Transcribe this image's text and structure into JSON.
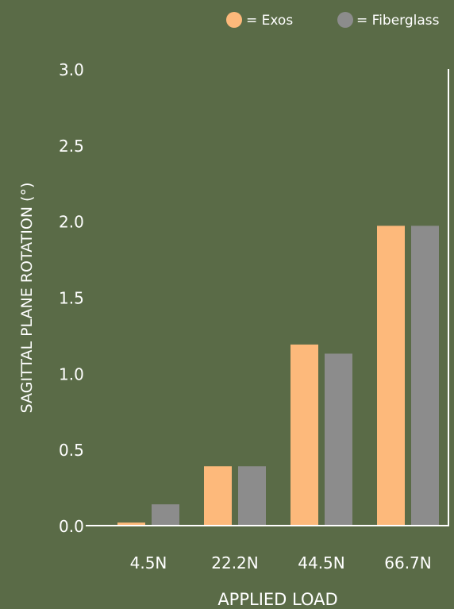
{
  "chart_data": {
    "type": "bar",
    "categories": [
      "4.5N",
      "22.2N",
      "44.5N",
      "66.7N"
    ],
    "series": [
      {
        "name": "Exos",
        "values": [
          0.02,
          0.39,
          1.19,
          1.97
        ],
        "color": "#fdb97b"
      },
      {
        "name": "Fiberglass",
        "values": [
          0.14,
          0.39,
          1.13,
          1.97
        ],
        "color": "#8c8c8c"
      }
    ],
    "legend_labels": [
      "= Exos",
      "= Fiberglass"
    ],
    "title": "",
    "xlabel": "APPLIED LOAD",
    "ylabel": "SAGITTAL PLANE ROTATION (°)",
    "ylim": [
      0,
      3.0
    ],
    "yticks": [
      "0.0",
      "0.5",
      "1.0",
      "1.5",
      "2.0",
      "2.5",
      "3.0"
    ],
    "grid": false,
    "legend_position": "top-right",
    "text_color": "#ffffff",
    "axis_color": "#ffffff",
    "background": "#5a6b47"
  }
}
